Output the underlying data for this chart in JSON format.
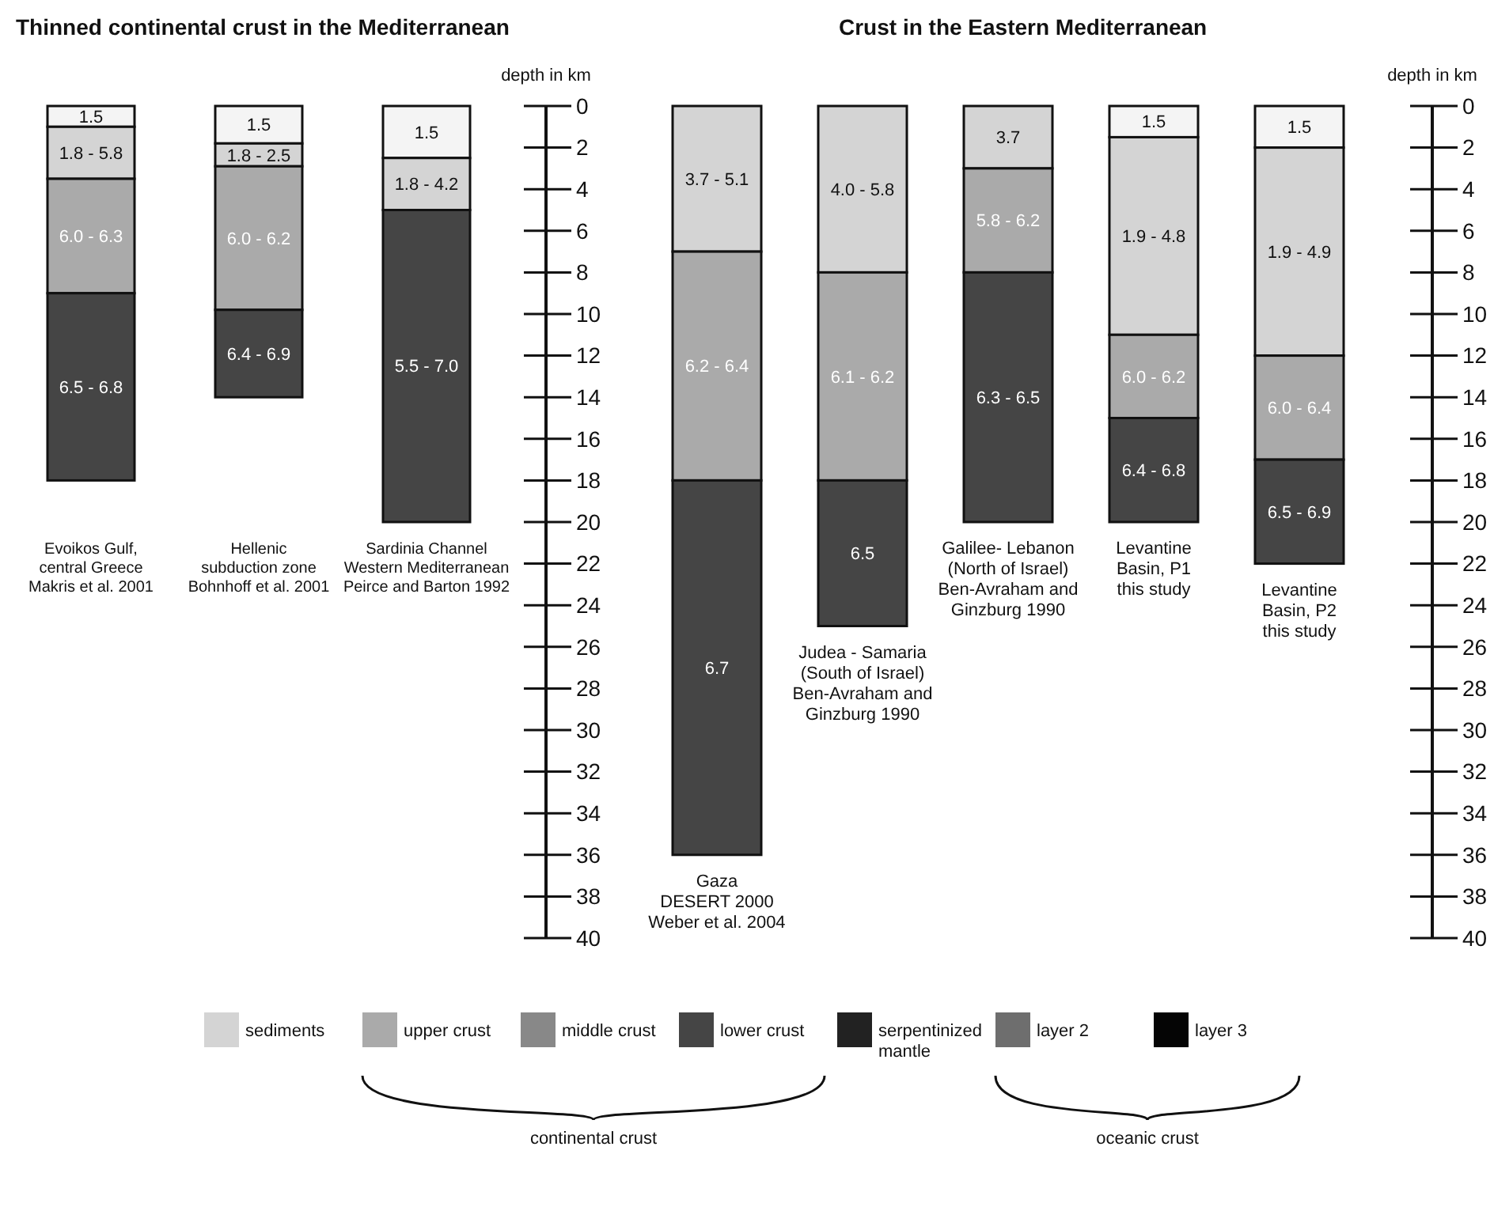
{
  "chart_data": [
    {
      "type": "bar",
      "title": "Thinned continental crust in the Mediterranean",
      "ylabel": "depth in km",
      "stacked": true,
      "legend": "bottom",
      "categories": [
        "Evoikos Gulf,\ncentral Greece\nMakris et al. 2001",
        "Hellenic\nsubduction zone\nBohnhoff et al. 2001",
        "Sardinia Channel\nWestern Mediterranean\nPeirce and Barton 1992"
      ],
      "ylim": [
        40,
        0
      ],
      "yticks": [
        0,
        2,
        4,
        6,
        8,
        10,
        12,
        14,
        16,
        18,
        20,
        22,
        24,
        26,
        28,
        30,
        32,
        34,
        36,
        38,
        40
      ],
      "series": [
        {
          "color": "#f4f4f4",
          "values": [
            1,
            1.8,
            2.5
          ]
        },
        {
          "name": "sediments",
          "color": "#d4d4d4",
          "values": [
            2.5,
            1.1,
            2.5
          ]
        },
        {
          "name": "upper crust",
          "color": "#aaaaaa",
          "values": [
            5.5,
            6.9,
            null
          ]
        },
        {
          "name": "middle crust",
          "color": "#888888",
          "values": [
            null,
            null,
            null
          ]
        },
        {
          "name": "lower crust",
          "color": "#454545",
          "values": [
            9,
            4.2,
            15
          ]
        },
        {
          "name": "serpentinized\nmantle",
          "color": "#222222",
          "values": [
            null,
            null,
            null
          ]
        },
        {
          "name": "layer 2",
          "color": "#6e6e6e",
          "values": [
            null,
            null,
            null
          ]
        },
        {
          "name": "layer 3",
          "color": "#050505",
          "values": [
            null,
            null,
            null
          ]
        }
      ],
      "annotations": [
        "1.5",
        "1.8 - 5.8",
        "6.0 - 6.3",
        "6.5 - 6.8",
        "1.5",
        "1.8 - 2.5",
        "6.0 - 6.2",
        "6.4 - 6.9",
        "1.5",
        "1.8 - 4.2",
        "5.5 - 7.0",
        "continental crust",
        "oceanic crust"
      ]
    },
    {
      "type": "bar",
      "title": "Crust in the Eastern Mediterranean",
      "ylabel": "depth in km",
      "stacked": true,
      "categories": [
        "Gaza\nDESERT 2000\nWeber et al. 2004",
        "Judea - Samaria\n(South of Israel)\nBen-Avraham and\nGinzburg 1990",
        "Galilee- Lebanon\n(North of Israel)\nBen-Avraham and\nGinzburg 1990",
        "Levantine\nBasin, P1\nthis study",
        "Levantine\nBasin, P2\nthis study"
      ],
      "ylim": [
        40,
        0
      ],
      "yticks": [
        0,
        2,
        4,
        6,
        8,
        10,
        12,
        14,
        16,
        18,
        20,
        22,
        24,
        26,
        28,
        30,
        32,
        34,
        36,
        38,
        40
      ],
      "series": [
        {
          "color": "#f4f4f4",
          "values": [
            null,
            null,
            null,
            1.5,
            2
          ]
        },
        {
          "color": "#d4d4d4",
          "values": [
            7,
            8,
            3,
            9.5,
            10
          ]
        },
        {
          "color": "#aaaaaa",
          "values": [
            11,
            10,
            5,
            4,
            5
          ]
        },
        {
          "color": "#454545",
          "values": [
            18,
            7,
            12,
            5,
            5
          ]
        }
      ],
      "annotations": [
        "3.7 - 5.1",
        "6.2 - 6.4",
        "6.7",
        "4.0 - 5.8",
        "6.1 - 6.2",
        "6.5",
        "3.7",
        "5.8 - 6.2",
        "6.3 - 6.5",
        "1.5",
        "1.9 - 4.8",
        "6.0 - 6.2",
        "6.4 - 6.8",
        "1.5",
        "1.9 - 4.9",
        "6.0 - 6.4",
        "6.5 - 6.9"
      ]
    }
  ]
}
